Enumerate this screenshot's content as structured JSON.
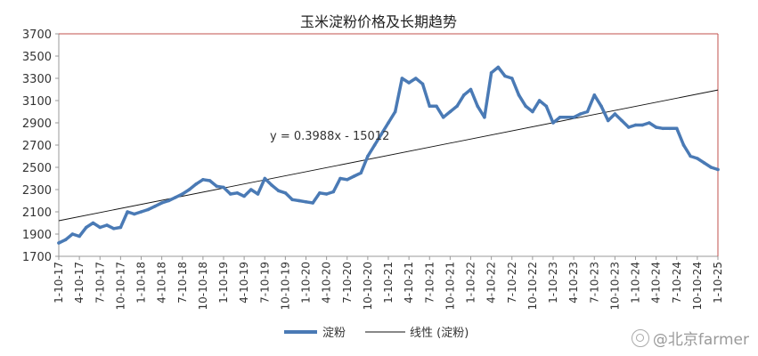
{
  "chart_data": {
    "type": "line",
    "title": "玉米淀粉价格及长期趋势",
    "xlabel": "",
    "ylabel": "",
    "ylim": [
      1700,
      3700
    ],
    "yticks": [
      1700,
      1900,
      2100,
      2300,
      2500,
      2700,
      2900,
      3100,
      3300,
      3500,
      3700
    ],
    "x_tick_labels": [
      "1-10-17",
      "4-10-17",
      "7-10-17",
      "10-10-17",
      "1-10-18",
      "4-10-18",
      "7-10-18",
      "10-10-18",
      "1-10-19",
      "4-10-19",
      "7-10-19",
      "10-10-19",
      "1-10-20",
      "4-10-20",
      "7-10-20",
      "10-10-20",
      "1-10-21",
      "4-10-21",
      "7-10-21",
      "10-10-21",
      "1-10-22",
      "4-10-22",
      "7-10-22",
      "10-10-22",
      "1-10-23",
      "4-10-23",
      "7-10-23",
      "10-10-23",
      "1-10-24",
      "4-10-24",
      "7-10-24",
      "10-10-24",
      "1-10-25"
    ],
    "grid": false,
    "legend_position": "bottom",
    "series": [
      {
        "name": "淀粉",
        "color": "#4a7ab5",
        "x": [
          "1-10-17",
          "2-10-17",
          "3-10-17",
          "4-10-17",
          "5-10-17",
          "6-10-17",
          "7-10-17",
          "8-10-17",
          "9-10-17",
          "10-10-17",
          "11-10-17",
          "12-10-17",
          "1-10-18",
          "2-10-18",
          "3-10-18",
          "4-10-18",
          "5-10-18",
          "6-10-18",
          "7-10-18",
          "8-10-18",
          "9-10-18",
          "10-10-18",
          "11-10-18",
          "12-10-18",
          "1-10-19",
          "2-10-19",
          "3-10-19",
          "4-10-19",
          "5-10-19",
          "6-10-19",
          "7-10-19",
          "8-10-19",
          "9-10-19",
          "10-10-19",
          "11-10-19",
          "12-10-19",
          "1-10-20",
          "2-10-20",
          "3-10-20",
          "4-10-20",
          "5-10-20",
          "6-10-20",
          "7-10-20",
          "8-10-20",
          "9-10-20",
          "10-10-20",
          "11-10-20",
          "12-10-20",
          "1-10-21",
          "2-10-21",
          "3-10-21",
          "4-10-21",
          "5-10-21",
          "6-10-21",
          "7-10-21",
          "8-10-21",
          "9-10-21",
          "10-10-21",
          "11-10-21",
          "12-10-21",
          "1-10-22",
          "2-10-22",
          "3-10-22",
          "4-10-22",
          "5-10-22",
          "6-10-22",
          "7-10-22",
          "8-10-22",
          "9-10-22",
          "10-10-22",
          "11-10-22",
          "12-10-22",
          "1-10-23",
          "2-10-23",
          "3-10-23",
          "4-10-23",
          "5-10-23",
          "6-10-23",
          "7-10-23",
          "8-10-23",
          "9-10-23",
          "10-10-23",
          "11-10-23",
          "12-10-23",
          "1-10-24",
          "2-10-24",
          "3-10-24",
          "4-10-24",
          "5-10-24",
          "6-10-24",
          "7-10-24",
          "8-10-24",
          "9-10-24",
          "10-10-24",
          "11-10-24",
          "12-10-24",
          "1-10-25"
        ],
        "values": [
          1820,
          1850,
          1900,
          1880,
          1960,
          2000,
          1960,
          1980,
          1950,
          1960,
          2100,
          2080,
          2100,
          2120,
          2150,
          2180,
          2200,
          2230,
          2260,
          2300,
          2350,
          2390,
          2380,
          2330,
          2320,
          2260,
          2270,
          2240,
          2300,
          2260,
          2400,
          2340,
          2290,
          2270,
          2210,
          2200,
          2190,
          2180,
          2270,
          2260,
          2280,
          2400,
          2390,
          2420,
          2450,
          2600,
          2700,
          2800,
          2900,
          3000,
          3300,
          3260,
          3300,
          3250,
          3050,
          3050,
          2950,
          3000,
          3050,
          3150,
          3200,
          3050,
          2950,
          3350,
          3400,
          3320,
          3300,
          3150,
          3050,
          3000,
          3100,
          3050,
          2900,
          2950,
          2950,
          2950,
          2980,
          3000,
          3150,
          3050,
          2920,
          2980,
          2920,
          2860,
          2880,
          2880,
          2900,
          2860,
          2850,
          2850,
          2850,
          2700,
          2600,
          2580,
          2540,
          2500,
          2480
        ]
      },
      {
        "name": "线性 (淀粉)",
        "color": "#111111",
        "type": "trend",
        "start_value": 2020,
        "end_value": 3195
      }
    ],
    "annotations": [
      {
        "text": "y = 0.3988x - 15012"
      }
    ]
  },
  "watermark": "@北京farmer"
}
